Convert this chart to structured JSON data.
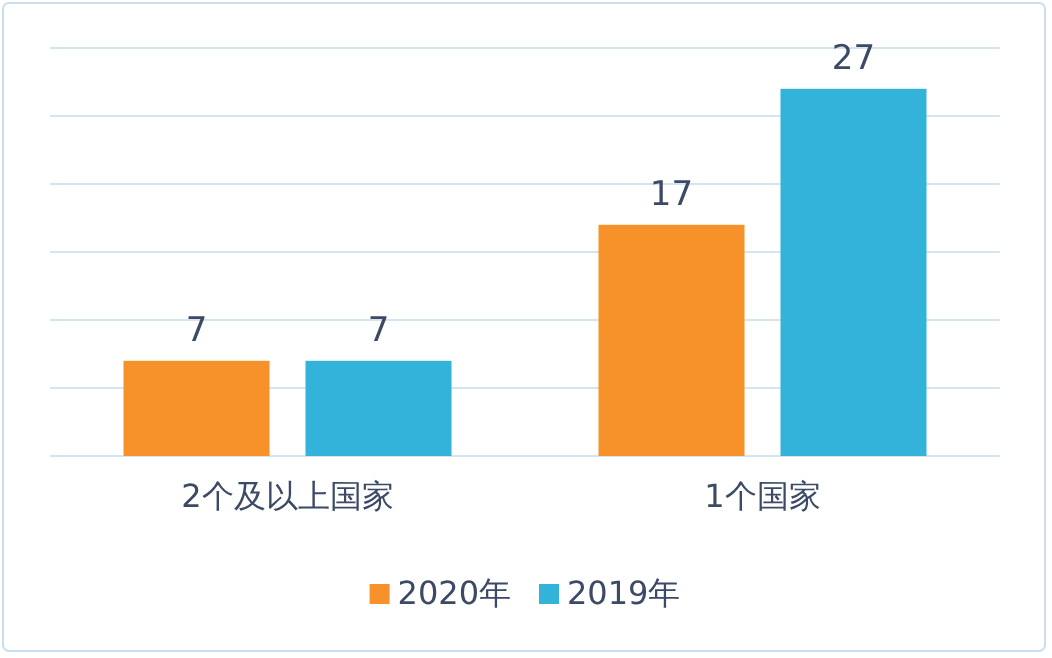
{
  "chart_data": {
    "type": "bar",
    "categories": [
      "2个及以上国家",
      "1个国家"
    ],
    "series": [
      {
        "name": "2020年",
        "color": "#f7922a",
        "values": [
          7,
          17
        ]
      },
      {
        "name": "2019年",
        "color": "#33b2da",
        "values": [
          7,
          27
        ]
      }
    ],
    "ylim": [
      0,
      30
    ],
    "yticks": [
      {
        "value": 0,
        "label": null
      },
      {
        "value": 5,
        "label": null
      },
      {
        "value": 10,
        "label": null
      },
      {
        "value": 15,
        "label": null
      },
      {
        "value": 20,
        "label": null
      },
      {
        "value": 25,
        "label": null
      },
      {
        "value": 30,
        "label": null
      }
    ],
    "tick_labels": "x",
    "grid": "y",
    "legend": "bottom",
    "data_labels": true
  }
}
